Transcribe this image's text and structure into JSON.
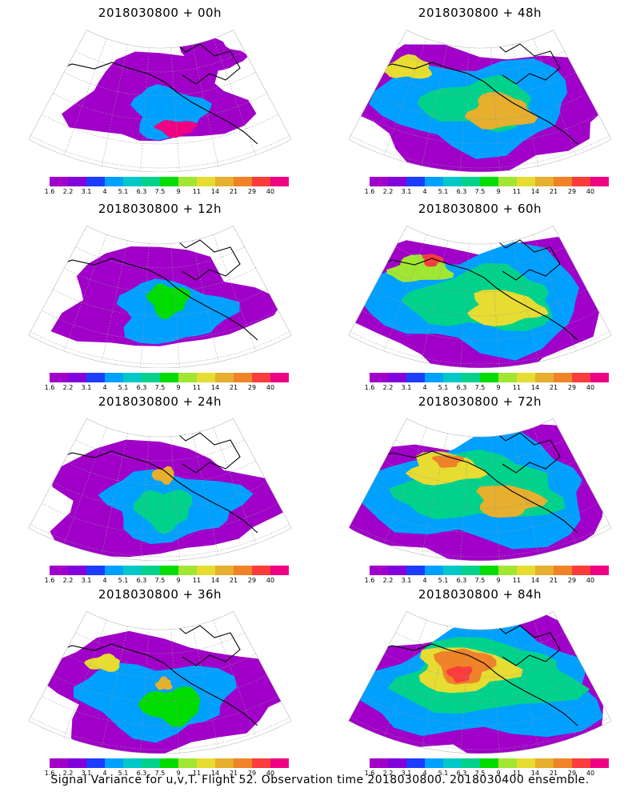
{
  "caption": "Signal Variance for u,v,T. Flight 52. Observation time 2018030800. 2018030400 ensemble.",
  "colorbar": {
    "colors": [
      "#a000c8",
      "#8200dc",
      "#1e3cff",
      "#00a0ff",
      "#00c8c8",
      "#00d28c",
      "#00dc00",
      "#a0e632",
      "#e6dc32",
      "#e6af2d",
      "#f08228",
      "#fa3c3c",
      "#f00082"
    ],
    "labels": [
      "1.6",
      "2.2",
      "3.1",
      "4",
      "5.1",
      "6.3",
      "7.5",
      "9",
      "11",
      "14",
      "21",
      "29",
      "40"
    ]
  },
  "panels": [
    {
      "title": "2018030800 + 00h",
      "level": 0
    },
    {
      "title": "2018030800 + 12h",
      "level": 1
    },
    {
      "title": "2018030800 + 24h",
      "level": 2
    },
    {
      "title": "2018030800 + 36h",
      "level": 3
    },
    {
      "title": "2018030800 + 48h",
      "level": 4
    },
    {
      "title": "2018030800 + 60h",
      "level": 5
    },
    {
      "title": "2018030800 + 72h",
      "level": 6
    },
    {
      "title": "2018030800 + 84h",
      "level": 7
    }
  ]
}
